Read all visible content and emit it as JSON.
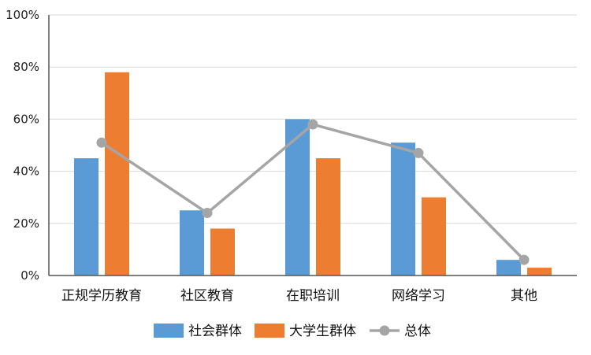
{
  "chart_data": {
    "type": "bar",
    "categories": [
      "正规学历教育",
      "社区教育",
      "在职培训",
      "网络学习",
      "其他"
    ],
    "series": [
      {
        "name": "社会群体",
        "kind": "bar",
        "color": "#5b9bd5",
        "values": [
          45,
          25,
          60,
          51,
          6
        ]
      },
      {
        "name": "大学生群体",
        "kind": "bar",
        "color": "#ed7d31",
        "values": [
          78,
          18,
          45,
          30,
          3
        ]
      },
      {
        "name": "总体",
        "kind": "line",
        "color": "#a5a5a5",
        "values": [
          51,
          24,
          58,
          47,
          6
        ]
      }
    ],
    "yticks": [
      "0%",
      "20%",
      "40%",
      "60%",
      "80%",
      "100%"
    ],
    "ylim": [
      0,
      100
    ],
    "grid": true,
    "legend": "bottom"
  }
}
